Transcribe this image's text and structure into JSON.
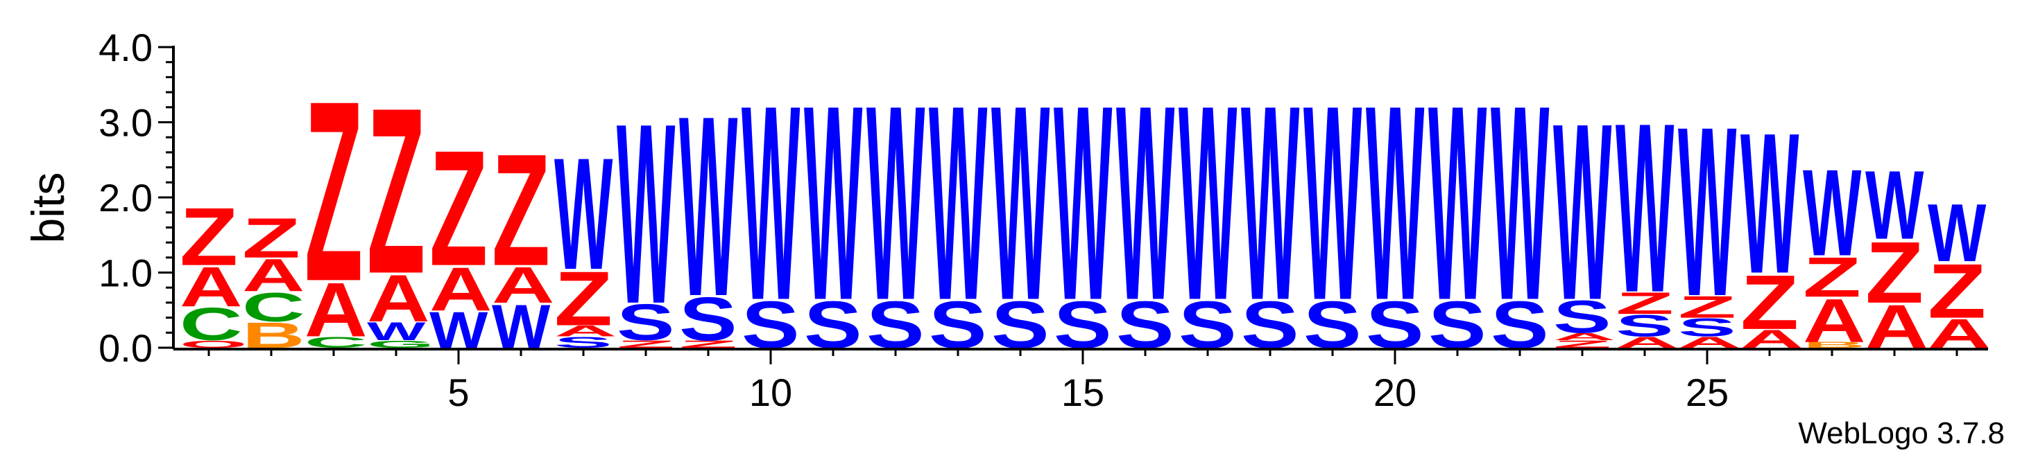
{
  "chart_data": {
    "type": "sequence-logo",
    "ylabel": "bits",
    "xlabel": "",
    "ylim": [
      0,
      4.0
    ],
    "yticks": [
      "0.0",
      "1.0",
      "2.0",
      "3.0",
      "4.0"
    ],
    "xticks": [
      {
        "pos": 5,
        "label": "5"
      },
      {
        "pos": 10,
        "label": "10"
      },
      {
        "pos": 15,
        "label": "15"
      },
      {
        "pos": 20,
        "label": "20"
      },
      {
        "pos": 25,
        "label": "25"
      }
    ],
    "xrange": [
      1,
      29
    ],
    "watermark": "WebLogo 3.7.8",
    "colors": {
      "Z": "#ff0000",
      "A": "#ff0000",
      "W": "#0000ff",
      "S": "#0000ff",
      "C": "#009900",
      "B": "#ff8800",
      "G": "#009900",
      "Q": "#ff0000"
    },
    "positions": [
      {
        "pos": 1,
        "stack": [
          [
            "Q",
            0.1
          ],
          [
            "C",
            0.45
          ],
          [
            "A",
            0.55
          ],
          [
            "Z",
            0.8
          ]
        ]
      },
      {
        "pos": 2,
        "stack": [
          [
            "B",
            0.35
          ],
          [
            "C",
            0.4
          ],
          [
            "A",
            0.45
          ],
          [
            "Z",
            0.55
          ]
        ]
      },
      {
        "pos": 3,
        "stack": [
          [
            "C",
            0.15
          ],
          [
            "A",
            0.75
          ],
          [
            "Z",
            2.5
          ]
        ]
      },
      {
        "pos": 4,
        "stack": [
          [
            "G",
            0.1
          ],
          [
            "W",
            0.25
          ],
          [
            "A",
            0.65
          ],
          [
            "Z",
            2.3
          ]
        ]
      },
      {
        "pos": 5,
        "stack": [
          [
            "W",
            0.5
          ],
          [
            "A",
            0.6
          ],
          [
            "Z",
            1.6
          ]
        ]
      },
      {
        "pos": 6,
        "stack": [
          [
            "W",
            0.6
          ],
          [
            "A",
            0.5
          ],
          [
            "Z",
            1.55
          ]
        ]
      },
      {
        "pos": 7,
        "stack": [
          [
            "S",
            0.15
          ],
          [
            "A",
            0.15
          ],
          [
            "Z",
            0.75
          ],
          [
            "W",
            1.55
          ]
        ]
      },
      {
        "pos": 8,
        "stack": [
          [
            "Z",
            0.1
          ],
          [
            "S",
            0.5
          ],
          [
            "W",
            2.5
          ]
        ]
      },
      {
        "pos": 9,
        "stack": [
          [
            "Z",
            0.1
          ],
          [
            "S",
            0.6
          ],
          [
            "W",
            2.5
          ]
        ]
      },
      {
        "pos": 10,
        "stack": [
          [
            "S",
            0.65
          ],
          [
            "W",
            2.7
          ]
        ]
      },
      {
        "pos": 11,
        "stack": [
          [
            "S",
            0.65
          ],
          [
            "W",
            2.7
          ]
        ]
      },
      {
        "pos": 12,
        "stack": [
          [
            "S",
            0.65
          ],
          [
            "W",
            2.7
          ]
        ]
      },
      {
        "pos": 13,
        "stack": [
          [
            "S",
            0.65
          ],
          [
            "W",
            2.7
          ]
        ]
      },
      {
        "pos": 14,
        "stack": [
          [
            "S",
            0.65
          ],
          [
            "W",
            2.7
          ]
        ]
      },
      {
        "pos": 15,
        "stack": [
          [
            "S",
            0.65
          ],
          [
            "W",
            2.7
          ]
        ]
      },
      {
        "pos": 16,
        "stack": [
          [
            "S",
            0.65
          ],
          [
            "W",
            2.7
          ]
        ]
      },
      {
        "pos": 17,
        "stack": [
          [
            "S",
            0.65
          ],
          [
            "W",
            2.7
          ]
        ]
      },
      {
        "pos": 18,
        "stack": [
          [
            "S",
            0.65
          ],
          [
            "W",
            2.7
          ]
        ]
      },
      {
        "pos": 19,
        "stack": [
          [
            "S",
            0.65
          ],
          [
            "W",
            2.7
          ]
        ]
      },
      {
        "pos": 20,
        "stack": [
          [
            "S",
            0.65
          ],
          [
            "W",
            2.7
          ]
        ]
      },
      {
        "pos": 21,
        "stack": [
          [
            "S",
            0.65
          ],
          [
            "W",
            2.7
          ]
        ]
      },
      {
        "pos": 22,
        "stack": [
          [
            "S",
            0.65
          ],
          [
            "W",
            2.7
          ]
        ]
      },
      {
        "pos": 23,
        "stack": [
          [
            "Z",
            0.1
          ],
          [
            "A",
            0.1
          ],
          [
            "S",
            0.45
          ],
          [
            "W",
            2.45
          ]
        ]
      },
      {
        "pos": 24,
        "stack": [
          [
            "A",
            0.15
          ],
          [
            "S",
            0.3
          ],
          [
            "Z",
            0.3
          ],
          [
            "W",
            2.35
          ]
        ]
      },
      {
        "pos": 25,
        "stack": [
          [
            "A",
            0.15
          ],
          [
            "S",
            0.25
          ],
          [
            "Z",
            0.3
          ],
          [
            "W",
            2.35
          ]
        ]
      },
      {
        "pos": 26,
        "stack": [
          [
            "A",
            0.25
          ],
          [
            "Z",
            0.75
          ],
          [
            "W",
            1.95
          ]
        ]
      },
      {
        "pos": 27,
        "stack": [
          [
            "B",
            0.08
          ],
          [
            "A",
            0.6
          ],
          [
            "Z",
            0.55
          ],
          [
            "W",
            1.2
          ]
        ]
      },
      {
        "pos": 28,
        "stack": [
          [
            "A",
            0.6
          ],
          [
            "Z",
            0.85
          ],
          [
            "W",
            0.95
          ]
        ]
      },
      {
        "pos": 29,
        "stack": [
          [
            "A",
            0.4
          ],
          [
            "Z",
            0.75
          ],
          [
            "W",
            0.8
          ]
        ]
      }
    ]
  }
}
